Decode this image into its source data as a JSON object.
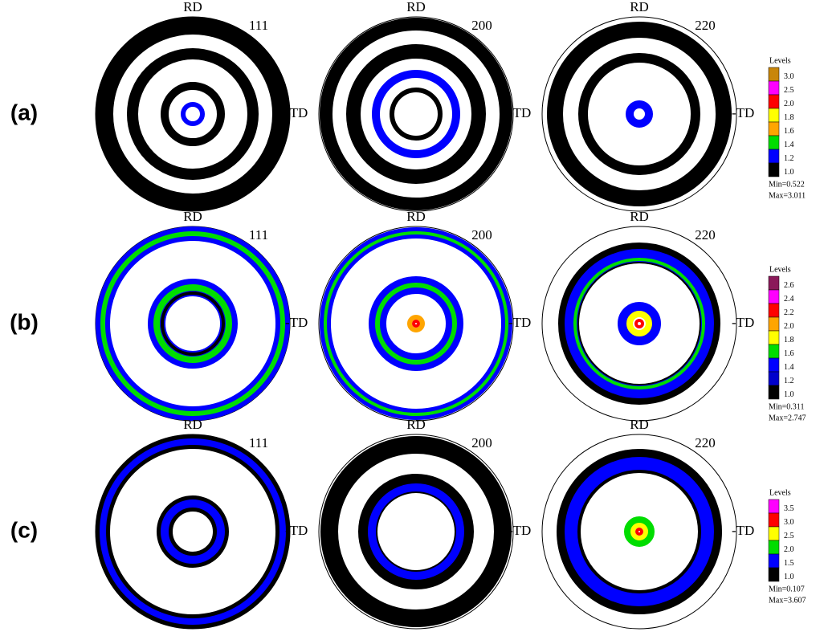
{
  "rows": [
    {
      "label": "(a)",
      "panels": [
        {
          "rd": "RD",
          "pole": "111",
          "td": "-TD"
        },
        {
          "rd": "RD",
          "pole": "200",
          "td": "-TD"
        },
        {
          "rd": "RD",
          "pole": "220",
          "td": "-TD"
        }
      ],
      "legend": {
        "title": "Levels",
        "levels": [
          {
            "label": "3.0",
            "color": "#c8860a"
          },
          {
            "label": "2.5",
            "color": "#ff00ff"
          },
          {
            "label": "2.0",
            "color": "#ff0000"
          },
          {
            "label": "1.8",
            "color": "#ffff00"
          },
          {
            "label": "1.6",
            "color": "#ffa500"
          },
          {
            "label": "1.4",
            "color": "#00dd00"
          },
          {
            "label": "1.2",
            "color": "#0000ff"
          },
          {
            "label": "1.0",
            "color": "#000000"
          }
        ],
        "min": "Min=0.522",
        "max": "Max=3.011"
      }
    },
    {
      "label": "(b)",
      "panels": [
        {
          "rd": "RD",
          "pole": "111",
          "td": "-TD"
        },
        {
          "rd": "RD",
          "pole": "200",
          "td": "-TD"
        },
        {
          "rd": "RD",
          "pole": "220",
          "td": "-TD"
        }
      ],
      "legend": {
        "title": "Levels",
        "levels": [
          {
            "label": "2.6",
            "color": "#8b1a5a"
          },
          {
            "label": "2.4",
            "color": "#ff00ff"
          },
          {
            "label": "2.2",
            "color": "#ff0000"
          },
          {
            "label": "2.0",
            "color": "#ffa500"
          },
          {
            "label": "1.8",
            "color": "#ffff00"
          },
          {
            "label": "1.6",
            "color": "#00dd00"
          },
          {
            "label": "1.4",
            "color": "#0000ff"
          },
          {
            "label": "1.2",
            "color": "#0000cc"
          },
          {
            "label": "1.0",
            "color": "#000000"
          }
        ],
        "min": "Min=0.311",
        "max": "Max=2.747"
      }
    },
    {
      "label": "(c)",
      "panels": [
        {
          "rd": "RD",
          "pole": "111",
          "td": "-TD"
        },
        {
          "rd": "RD",
          "pole": "200",
          "td": "-TD"
        },
        {
          "rd": "RD",
          "pole": "220",
          "td": "-TD"
        }
      ],
      "legend": {
        "title": "Levels",
        "levels": [
          {
            "label": "3.5",
            "color": "#ff00ff"
          },
          {
            "label": "3.0",
            "color": "#ff0000"
          },
          {
            "label": "2.5",
            "color": "#ffff00"
          },
          {
            "label": "2.0",
            "color": "#00dd00"
          },
          {
            "label": "1.5",
            "color": "#0000ff"
          },
          {
            "label": "1.0",
            "color": "#000000"
          }
        ],
        "min": "Min=0.107",
        "max": "Max=3.607"
      }
    }
  ]
}
